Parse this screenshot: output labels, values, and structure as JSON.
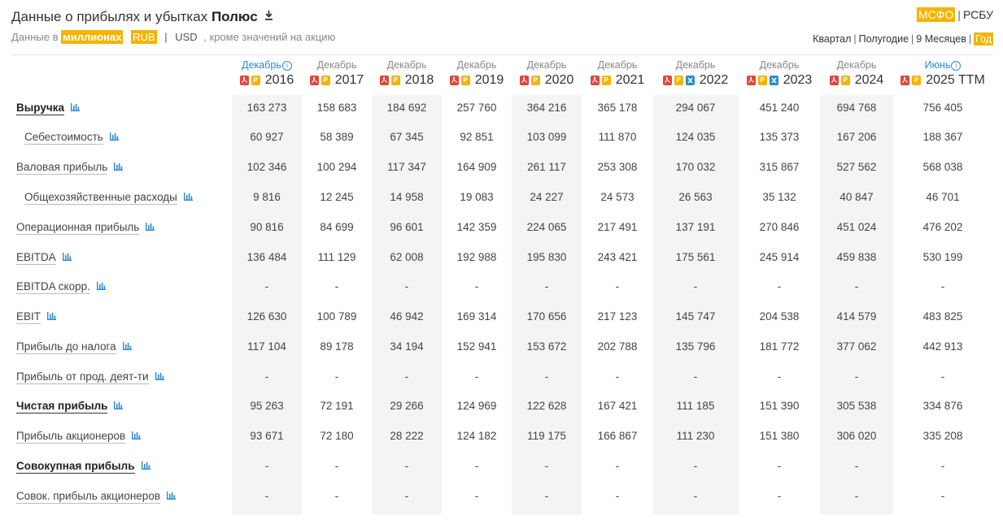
{
  "header": {
    "title_prefix": "Данные о прибылях и убытках",
    "company": "Полюс",
    "units_prefix": "Данные в",
    "units_scale": "миллионах",
    "currency_active": "RUB",
    "currency_other": "USD",
    "units_suffix": ", кроме значений на акцию"
  },
  "standards": {
    "ifrs": "МСФО",
    "ras": "РСБУ"
  },
  "periods": {
    "quarter": "Квартал",
    "half": "Полугодие",
    "nine_months": "9 Месяцев",
    "year": "Год"
  },
  "accent_color": "#f4b400",
  "columns": [
    {
      "month": "Декабрь",
      "year": "2016",
      "info": true,
      "files": [
        "pdf",
        "rep"
      ]
    },
    {
      "month": "Декабрь",
      "year": "2017",
      "info": false,
      "files": [
        "pdf",
        "rep"
      ]
    },
    {
      "month": "Декабрь",
      "year": "2018",
      "info": false,
      "files": [
        "pdf",
        "rep"
      ]
    },
    {
      "month": "Декабрь",
      "year": "2019",
      "info": false,
      "files": [
        "pdf",
        "rep"
      ]
    },
    {
      "month": "Декабрь",
      "year": "2020",
      "info": false,
      "files": [
        "pdf",
        "rep"
      ]
    },
    {
      "month": "Декабрь",
      "year": "2021",
      "info": false,
      "files": [
        "pdf",
        "rep"
      ]
    },
    {
      "month": "Декабрь",
      "year": "2022",
      "info": false,
      "files": [
        "pdf",
        "rep",
        "xls"
      ]
    },
    {
      "month": "Декабрь",
      "year": "2023",
      "info": false,
      "files": [
        "pdf",
        "rep",
        "xls"
      ]
    },
    {
      "month": "Декабрь",
      "year": "2024",
      "info": false,
      "files": [
        "pdf",
        "rep"
      ]
    },
    {
      "month": "Июнь",
      "year": "2025 TTM",
      "info": true,
      "files": [
        "pdf",
        "rep"
      ]
    }
  ],
  "rows": [
    {
      "label": "Выручка",
      "bold": true,
      "indent": false,
      "values": [
        "163 273",
        "158 683",
        "184 692",
        "257 760",
        "364 216",
        "365 178",
        "294 067",
        "451 240",
        "694 768",
        "756 405"
      ]
    },
    {
      "label": "Себестоимость",
      "bold": false,
      "indent": true,
      "values": [
        "60 927",
        "58 389",
        "67 345",
        "92 851",
        "103 099",
        "111 870",
        "124 035",
        "135 373",
        "167 206",
        "188 367"
      ]
    },
    {
      "label": "Валовая прибыль",
      "bold": false,
      "indent": false,
      "values": [
        "102 346",
        "100 294",
        "117 347",
        "164 909",
        "261 117",
        "253 308",
        "170 032",
        "315 867",
        "527 562",
        "568 038"
      ]
    },
    {
      "label": "Общехозяйственные расходы",
      "bold": false,
      "indent": true,
      "values": [
        "9 816",
        "12 245",
        "14 958",
        "19 083",
        "24 227",
        "24 573",
        "26 563",
        "35 132",
        "40 847",
        "46 701"
      ]
    },
    {
      "label": "Операционная прибыль",
      "bold": false,
      "indent": false,
      "values": [
        "90 816",
        "84 699",
        "96 601",
        "142 359",
        "224 065",
        "217 491",
        "137 191",
        "270 846",
        "451 024",
        "476 202"
      ]
    },
    {
      "label": "EBITDA",
      "bold": false,
      "indent": false,
      "values": [
        "136 484",
        "111 129",
        "62 008",
        "192 988",
        "195 830",
        "243 421",
        "175 561",
        "245 914",
        "459 838",
        "530 199"
      ]
    },
    {
      "label": "EBITDA скорр.",
      "bold": false,
      "indent": false,
      "values": [
        "-",
        "-",
        "-",
        "-",
        "-",
        "-",
        "-",
        "-",
        "-",
        "-"
      ]
    },
    {
      "label": "EBIT",
      "bold": false,
      "indent": false,
      "values": [
        "126 630",
        "100 789",
        "46 942",
        "169 314",
        "170 656",
        "217 123",
        "145 747",
        "204 538",
        "414 579",
        "483 825"
      ]
    },
    {
      "label": "Прибыль до налога",
      "bold": false,
      "indent": false,
      "values": [
        "117 104",
        "89 178",
        "34 194",
        "152 941",
        "153 672",
        "202 788",
        "135 796",
        "181 772",
        "377 062",
        "442 913"
      ]
    },
    {
      "label": "Прибыль от прод. деят-ти",
      "bold": false,
      "indent": false,
      "values": [
        "-",
        "-",
        "-",
        "-",
        "-",
        "-",
        "-",
        "-",
        "-",
        "-"
      ]
    },
    {
      "label": "Чистая прибыль",
      "bold": true,
      "indent": false,
      "values": [
        "95 263",
        "72 191",
        "29 266",
        "124 969",
        "122 628",
        "167 421",
        "111 185",
        "151 390",
        "305 538",
        "334 876"
      ]
    },
    {
      "label": "Прибыль акционеров",
      "bold": false,
      "indent": false,
      "values": [
        "93 671",
        "72 180",
        "28 222",
        "124 182",
        "119 175",
        "166 867",
        "111 230",
        "151 380",
        "306 020",
        "335 208"
      ]
    },
    {
      "label": "Совокупная прибыль",
      "bold": true,
      "indent": false,
      "values": [
        "-",
        "-",
        "-",
        "-",
        "-",
        "-",
        "-",
        "-",
        "-",
        "-"
      ]
    },
    {
      "label": "Совок. прибыль акционеров",
      "bold": false,
      "indent": false,
      "values": [
        "-",
        "-",
        "-",
        "-",
        "-",
        "-",
        "-",
        "-",
        "-",
        "-"
      ]
    }
  ]
}
